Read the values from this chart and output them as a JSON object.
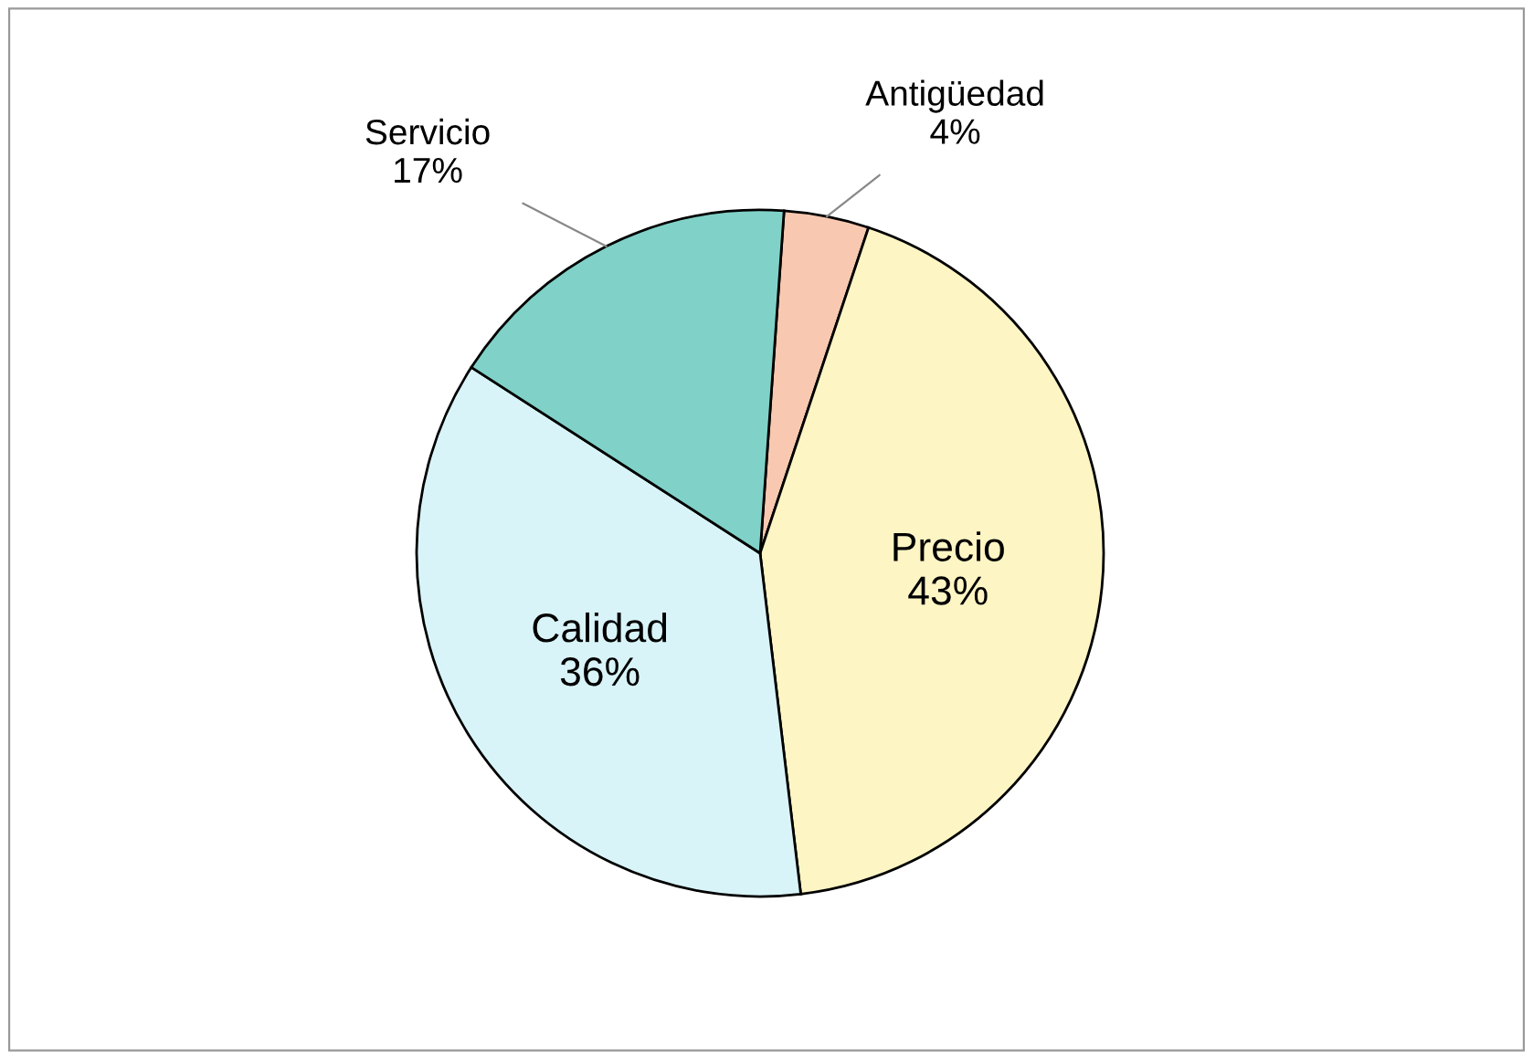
{
  "chart_data": {
    "type": "pie",
    "categories": [
      "Antigüedad",
      "Precio",
      "Calidad",
      "Servicio"
    ],
    "values": [
      4,
      43,
      36,
      17
    ],
    "value_labels": [
      "4%",
      "43%",
      "36%",
      "17%"
    ],
    "colors": [
      "#f8c8b0",
      "#fdf5c4",
      "#d8f4f8",
      "#80d2c8"
    ]
  }
}
